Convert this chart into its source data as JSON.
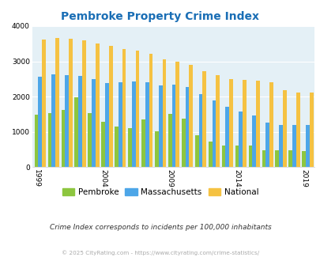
{
  "title": "Pembroke Property Crime Index",
  "years": [
    1999,
    2000,
    2001,
    2002,
    2003,
    2004,
    2005,
    2006,
    2007,
    2008,
    2009,
    2010,
    2011,
    2012,
    2013,
    2014,
    2015,
    2016,
    2017,
    2018,
    2019
  ],
  "pembroke": [
    1480,
    1520,
    1620,
    1980,
    1530,
    1290,
    1160,
    1100,
    1350,
    1010,
    1510,
    1380,
    900,
    730,
    610,
    610,
    610,
    480,
    480,
    480,
    450
  ],
  "massachusetts": [
    2570,
    2640,
    2610,
    2580,
    2490,
    2380,
    2410,
    2420,
    2410,
    2320,
    2340,
    2280,
    2060,
    1880,
    1700,
    1570,
    1470,
    1270,
    1190,
    1190,
    1190
  ],
  "national": [
    3620,
    3670,
    3640,
    3600,
    3510,
    3440,
    3350,
    3310,
    3220,
    3060,
    2990,
    2910,
    2730,
    2610,
    2500,
    2480,
    2450,
    2400,
    2180,
    2110,
    2110
  ],
  "bar_colors": {
    "pembroke": "#8dc63f",
    "massachusetts": "#4da6e8",
    "national": "#f5c242"
  },
  "ylabel_ticks": [
    0,
    1000,
    2000,
    3000,
    4000
  ],
  "xtick_labels": [
    "1999",
    "2004",
    "2009",
    "2014",
    "2019"
  ],
  "xtick_year_indices": [
    0,
    5,
    10,
    15,
    20
  ],
  "ylim": [
    0,
    4000
  ],
  "plot_bg": "#e4f0f6",
  "title_color": "#1a6eb5",
  "subtitle": "Crime Index corresponds to incidents per 100,000 inhabitants",
  "subtitle_color": "#333333",
  "footer": "© 2025 CityRating.com - https://www.cityrating.com/crime-statistics/",
  "footer_color": "#aaaaaa",
  "legend_labels": [
    "Pembroke",
    "Massachusetts",
    "National"
  ]
}
